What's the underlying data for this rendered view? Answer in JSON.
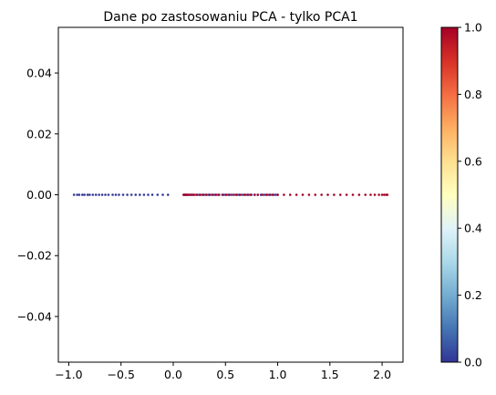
{
  "chart_data": {
    "type": "scatter",
    "title": "Dane po zastosowaniu PCA - tylko PCA1",
    "xlabel": "",
    "ylabel": "",
    "xlim": [
      -1.1,
      2.2
    ],
    "ylim": [
      -0.055,
      0.055
    ],
    "x_ticks": [
      -1.0,
      -0.5,
      0.0,
      0.5,
      1.0,
      1.5,
      2.0
    ],
    "x_tick_labels": [
      "−1.0",
      "−0.5",
      "0.0",
      "0.5",
      "1.0",
      "1.5",
      "2.0"
    ],
    "y_ticks": [
      0.04,
      0.02,
      0.0,
      -0.02,
      -0.04
    ],
    "y_tick_labels": [
      "0.04",
      "0.02",
      "0.00",
      "−0.02",
      "−0.04"
    ],
    "colormap": "RdYlBu_r",
    "colorbar": {
      "range": [
        0.0,
        1.0
      ],
      "ticks": [
        0.0,
        0.2,
        0.4,
        0.6,
        0.8,
        1.0
      ],
      "tick_labels": [
        "0.0",
        "0.2",
        "0.4",
        "0.6",
        "0.8",
        "1.0"
      ],
      "colors": [
        "#313695",
        "#4575b4",
        "#74add1",
        "#abd9e9",
        "#e0f3f8",
        "#ffffbf",
        "#fee090",
        "#fdae61",
        "#f46d43",
        "#d73027",
        "#a50026"
      ]
    },
    "grid": false,
    "series": [
      {
        "class_value": 0,
        "color": "#313695",
        "x": [
          -0.95,
          -0.92,
          -0.9,
          -0.87,
          -0.85,
          -0.82,
          -0.8,
          -0.77,
          -0.74,
          -0.71,
          -0.68,
          -0.65,
          -0.62,
          -0.58,
          -0.55,
          -0.52,
          -0.48,
          -0.44,
          -0.4,
          -0.36,
          -0.32,
          -0.28,
          -0.24,
          -0.2,
          -0.15,
          -0.1,
          -0.05,
          0.1,
          0.11,
          0.12,
          0.13,
          0.15,
          0.17,
          0.19,
          0.22,
          0.25,
          0.28,
          0.31,
          0.34,
          0.37,
          0.4,
          0.43,
          0.47,
          0.5,
          0.53,
          0.56,
          0.6,
          0.63,
          0.66,
          0.69,
          0.72,
          0.75,
          0.78,
          0.81,
          0.84,
          0.87,
          0.9,
          0.93,
          0.96,
          0.98,
          1.0
        ],
        "y": [
          0,
          0,
          0,
          0,
          0,
          0,
          0,
          0,
          0,
          0,
          0,
          0,
          0,
          0,
          0,
          0,
          0,
          0,
          0,
          0,
          0,
          0,
          0,
          0,
          0,
          0,
          0,
          0,
          0,
          0,
          0,
          0,
          0,
          0,
          0,
          0,
          0,
          0,
          0,
          0,
          0,
          0,
          0,
          0,
          0,
          0,
          0,
          0,
          0,
          0,
          0,
          0,
          0,
          0,
          0,
          0,
          0,
          0,
          0,
          0,
          0
        ]
      },
      {
        "class_value": 1,
        "color": "#a50026",
        "x": [
          0.1,
          0.11,
          0.12,
          0.13,
          0.14,
          0.16,
          0.18,
          0.2,
          0.23,
          0.26,
          0.29,
          0.32,
          0.35,
          0.38,
          0.41,
          0.44,
          0.48,
          0.51,
          0.54,
          0.58,
          0.61,
          0.64,
          0.68,
          0.71,
          0.74,
          0.78,
          0.81,
          0.85,
          0.89,
          0.92,
          0.95,
          1.0,
          1.06,
          1.12,
          1.18,
          1.24,
          1.3,
          1.36,
          1.42,
          1.48,
          1.54,
          1.6,
          1.66,
          1.72,
          1.78,
          1.84,
          1.89,
          1.93,
          1.97,
          2.0,
          2.02,
          2.04,
          2.05
        ],
        "y": [
          0,
          0,
          0,
          0,
          0,
          0,
          0,
          0,
          0,
          0,
          0,
          0,
          0,
          0,
          0,
          0,
          0,
          0,
          0,
          0,
          0,
          0,
          0,
          0,
          0,
          0,
          0,
          0,
          0,
          0,
          0,
          0,
          0,
          0,
          0,
          0,
          0,
          0,
          0,
          0,
          0,
          0,
          0,
          0,
          0,
          0,
          0,
          0,
          0,
          0,
          0,
          0,
          0
        ]
      }
    ]
  }
}
